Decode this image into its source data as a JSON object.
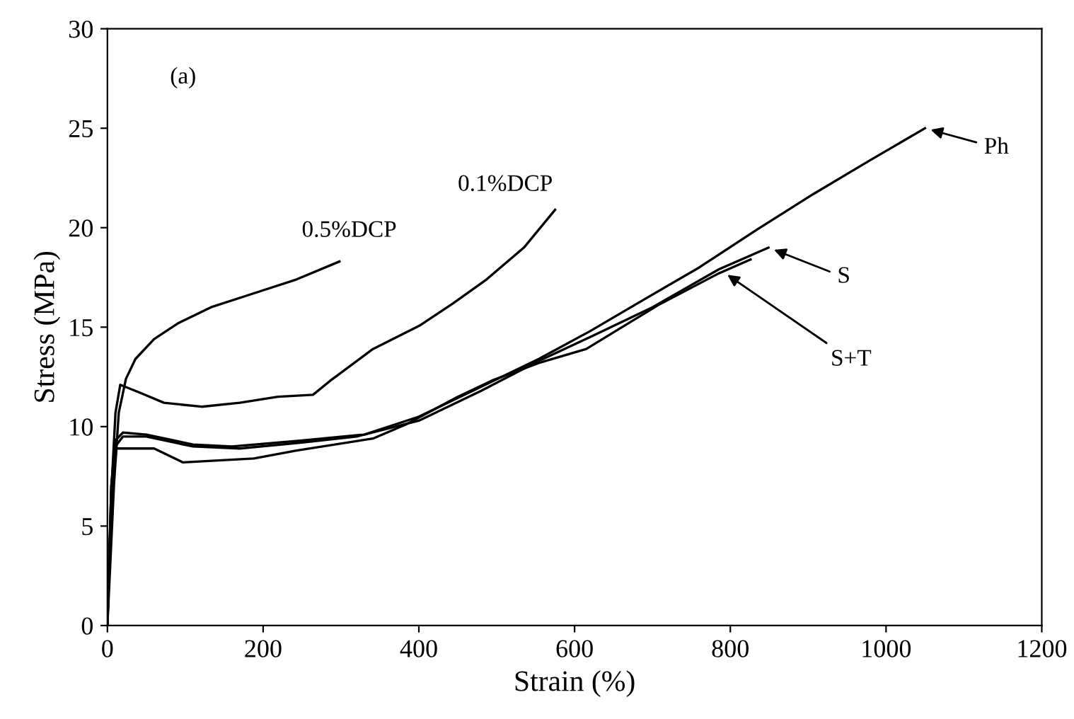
{
  "chart_data": {
    "type": "line",
    "xlabel": "Strain (%)",
    "ylabel": "Stress (MPa)",
    "xlim": [
      0,
      1200
    ],
    "ylim": [
      0,
      30
    ],
    "xticks": [
      0,
      200,
      400,
      600,
      800,
      1000,
      1200
    ],
    "yticks": [
      0,
      5,
      10,
      15,
      20,
      25,
      30
    ],
    "grid": false,
    "marker": "none",
    "line_style": "solid",
    "series": [
      {
        "color": "#000000",
        "x": [
          0,
          8.5,
          14.6,
          23.8,
          36,
          60,
          91,
          133,
          188,
          243,
          298
        ],
        "values": [
          0,
          7.1,
          10.7,
          12.4,
          13.4,
          14.4,
          15.2,
          16.0,
          16.7,
          17.4,
          18.3
        ]
      },
      {
        "color": "#000000",
        "x": [
          0,
          5.5,
          10.4,
          16.5,
          42,
          72.5,
          121,
          170,
          219,
          264,
          286,
          341,
          402,
          444,
          487,
          535,
          575
        ],
        "values": [
          0,
          7.1,
          10.7,
          12.1,
          11.7,
          11.2,
          11.0,
          11.2,
          11.5,
          11.6,
          12.3,
          13.9,
          15.1,
          16.2,
          17.4,
          19.0,
          20.9
        ]
      },
      {
        "color": "#000000",
        "x": [
          0,
          5,
          10,
          20,
          50,
          110,
          160,
          250,
          330,
          400,
          480,
          554,
          620,
          694,
          760,
          834,
          907,
          980,
          1050
        ],
        "values": [
          0,
          7,
          9.3,
          9.7,
          9.6,
          9.1,
          9.0,
          9.3,
          9.6,
          10.5,
          12.0,
          13.4,
          14.8,
          16.5,
          18.0,
          19.9,
          21.7,
          23.4,
          25
        ]
      },
      {
        "color": "#000000",
        "x": [
          0,
          5,
          10,
          20,
          50,
          110,
          170,
          250,
          320,
          400,
          480,
          554,
          620,
          700,
          785,
          849
        ],
        "values": [
          0,
          7,
          9.0,
          9.5,
          9.5,
          9.0,
          8.9,
          9.2,
          9.5,
          10.3,
          11.8,
          13.3,
          14.5,
          16.0,
          17.9,
          19.0
        ]
      },
      {
        "color": "#000000",
        "x": [
          0,
          5,
          11.6,
          60,
          97,
          188,
          243,
          341,
          383,
          450,
          493,
          554,
          615,
          707,
          785,
          826
        ],
        "values": [
          0,
          6.5,
          8.9,
          8.9,
          8.2,
          8.4,
          8.8,
          9.4,
          10.1,
          11.5,
          12.3,
          13.2,
          13.9,
          16.1,
          17.7,
          18.4
        ]
      }
    ],
    "annotations": [
      "(a)",
      "0.5%DCP",
      "0.1%DCP",
      {
        "text": "Ph",
        "x": 1050,
        "y": 25
      },
      {
        "text": "S",
        "x": 849,
        "y": 19.0
      },
      {
        "text": "S+T",
        "x": 790,
        "y": 17.8
      }
    ]
  }
}
